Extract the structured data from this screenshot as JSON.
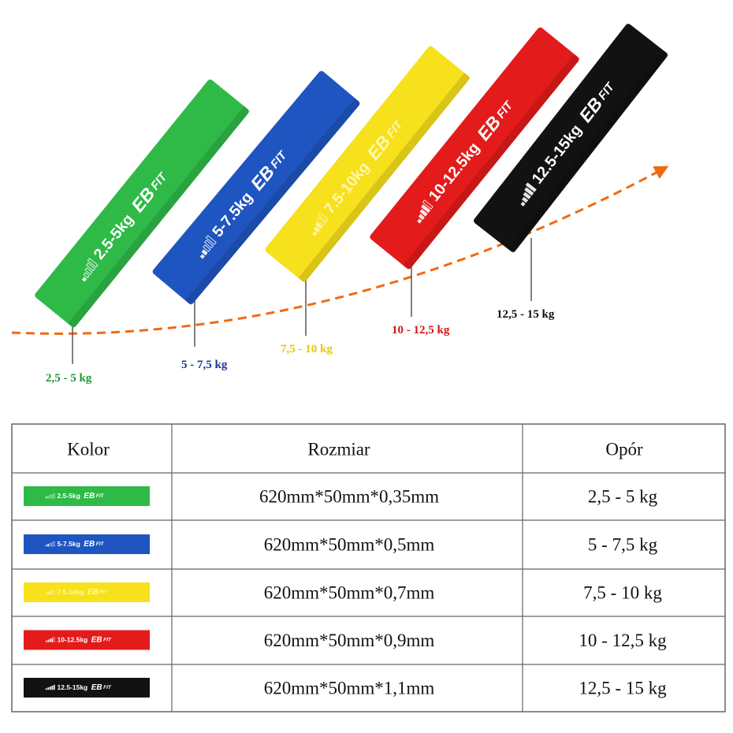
{
  "bands": [
    {
      "print": "2.5-5kg",
      "brand": "EB",
      "brand_suffix": "FIT",
      "label": "2,5 - 5 kg",
      "color": "#2fba48",
      "label_color": "#1f9a33"
    },
    {
      "print": "5-7.5kg",
      "brand": "EB",
      "brand_suffix": "FIT",
      "label": "5 - 7,5 kg",
      "color": "#1f55c0",
      "label_color": "#1b3a8f"
    },
    {
      "print": "7.5-10kg",
      "brand": "EB",
      "brand_suffix": "FIT",
      "label": "7,5 - 10 kg",
      "color": "#f7e01c",
      "label_color": "#e8c800"
    },
    {
      "print": "10-12.5kg",
      "brand": "EB",
      "brand_suffix": "FIT",
      "label": "10 - 12,5 kg",
      "color": "#e31b1b",
      "label_color": "#d01515"
    },
    {
      "print": "12.5-15kg",
      "brand": "EB",
      "brand_suffix": "FIT",
      "label": "12,5 - 15 kg",
      "color": "#121212",
      "label_color": "#111111"
    }
  ],
  "table": {
    "headers": [
      "Kolor",
      "Rozmiar",
      "Opór"
    ],
    "rows": [
      {
        "size": "620mm*50mm*0,35mm",
        "resistance": "2,5 - 5 kg"
      },
      {
        "size": "620mm*50mm*0,5mm",
        "resistance": "5 - 7,5 kg"
      },
      {
        "size": "620mm*50mm*0,7mm",
        "resistance": "7,5 - 10 kg"
      },
      {
        "size": "620mm*50mm*0,9mm",
        "resistance": "10 - 12,5 kg"
      },
      {
        "size": "620mm*50mm*1,1mm",
        "resistance": "12,5 - 15 kg"
      }
    ]
  }
}
